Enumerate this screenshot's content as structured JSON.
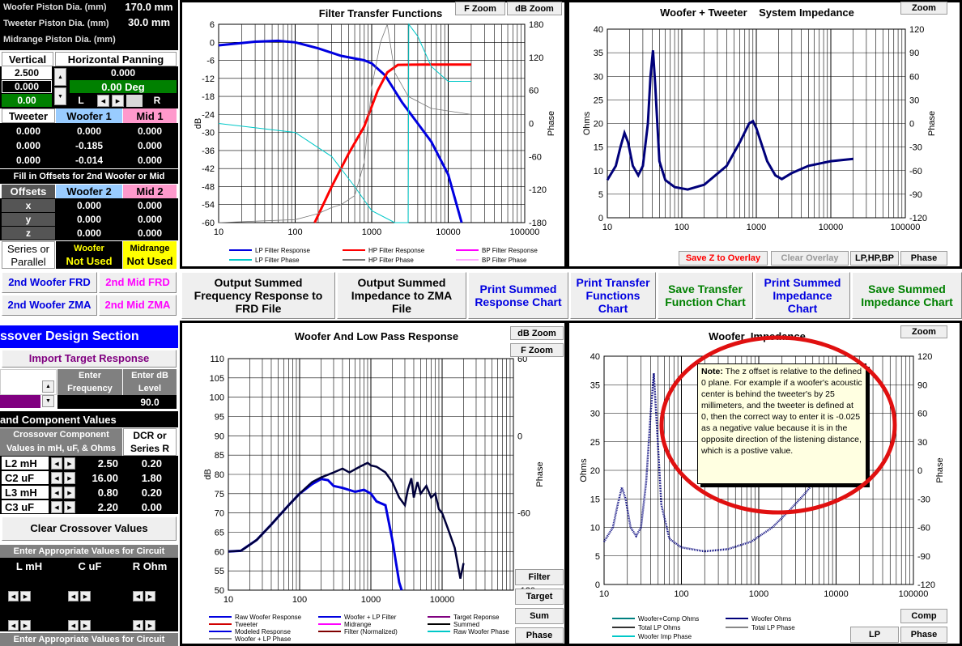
{
  "topleft": {
    "woofer_piston_label": "Woofer Piston Dia. (mm)",
    "woofer_piston_val": "170.0 mm",
    "tweeter_piston_label": "Tweeter Piston Dia. (mm)",
    "tweeter_piston_val": "30.0 mm",
    "mid_piston_label": "Midrange Piston Dia. (mm)"
  },
  "panning": {
    "vertical_label": "Vertical",
    "horizontal_label": "Horizontal Panning",
    "v1": "2.500",
    "v2": "0.000",
    "v3": "0.00",
    "h1": "0.000",
    "h2": "0.00 Deg",
    "L": "L",
    "R": "R"
  },
  "offsets_table": {
    "tweeter": "Tweeter",
    "woofer1": "Woofer 1",
    "mid1": "Mid 1",
    "rows": [
      [
        "0.000",
        "0.000",
        "0.000"
      ],
      [
        "0.000",
        "-0.185",
        "0.000"
      ],
      [
        "0.000",
        "-0.014",
        "0.000"
      ]
    ]
  },
  "offsets2": {
    "note": "Fill in Offsets for 2nd Woofer or Mid",
    "offsets": "Offsets",
    "woofer2": "Woofer 2",
    "mid2": "Mid 2",
    "rows": [
      [
        "x",
        "0.000",
        "0.000"
      ],
      [
        "y",
        "0.000",
        "0.000"
      ],
      [
        "z",
        "0.000",
        "0.000"
      ]
    ]
  },
  "series": {
    "label1": "Series or",
    "label2": "Parallel",
    "woofer": "Woofer",
    "woofer_val": "Not Used",
    "midrange": "Midrange",
    "mid_val": "Not Used"
  },
  "buttons_left": {
    "woofer_frd": "2nd Woofer FRD",
    "mid_frd": "2nd Mid FRD",
    "woofer_zma": "2nd Woofer ZMA",
    "mid_zma": "2nd Mid ZMA"
  },
  "action_buttons": [
    "Output Summed Frequency Response to FRD File",
    "Output Summed Impedance to ZMA File",
    "Print Summed Response Chart",
    "Print Transfer Functions Chart",
    "Save Transfer Function Chart",
    "Print Summed Impedance Chart",
    "Save Summed Impedance Chart"
  ],
  "crossover": {
    "header": "ssover Design Section",
    "import": "Import Target Response",
    "enter_freq": "Enter Frequency",
    "enter_db": "Enter dB Level",
    "db_val": "90.0",
    "component_values": "and Component Values",
    "comp_hdr": "Crossover Component Values in mH, uF, & Ohms",
    "dcr_hdr": "DCR or Series R",
    "components": [
      {
        "name": "L2 mH",
        "val": "2.50",
        "dcr": "0.20"
      },
      {
        "name": "C2  uF",
        "val": "16.00",
        "dcr": "1.80"
      },
      {
        "name": "L3 mH",
        "val": "0.80",
        "dcr": "0.20"
      },
      {
        "name": "C3  uF",
        "val": "2.20",
        "dcr": "0.00"
      }
    ],
    "clear": "Clear Crossover Values",
    "enter_vals": "Enter Appropriate Values for Circuit",
    "lmh": "L mH",
    "cuf": "C uF",
    "rohm": "R Ohm",
    "enter_vals2": "Enter Appropriate Values for Circuit"
  },
  "chart1": {
    "title": "Filter Transfer Functions",
    "fzoom": "F Zoom",
    "dbzoom": "dB Zoom",
    "ylabel": "dB",
    "y2label": "Phase",
    "yticks": [
      "6",
      "0",
      "-6",
      "-12",
      "-18",
      "-24",
      "-30",
      "-36",
      "-42",
      "-48",
      "-54",
      "-60"
    ],
    "y2ticks": [
      "180",
      "120",
      "60",
      "0",
      "-60",
      "-120",
      "-180"
    ],
    "xticks": [
      "10",
      "100",
      "1000",
      "10000",
      "100000"
    ],
    "legend": [
      "LP Filter Response",
      "HP Filter Response",
      "BP Filter Response",
      "LP Filter Phase",
      "HP Filter Phase",
      "BP Filter Phase"
    ]
  },
  "chart2": {
    "title": "Woofer + Tweeter    System Impedance",
    "zoom": "Zoom",
    "ylabel": "Ohms",
    "y2label": "Phase",
    "yticks": [
      "40",
      "35",
      "30",
      "25",
      "20",
      "15",
      "10",
      "5",
      "0"
    ],
    "y2ticks": [
      "120",
      "90",
      "60",
      "30",
      "0",
      "-30",
      "-60",
      "-90",
      "-120"
    ],
    "xticks": [
      "10",
      "100",
      "1000",
      "10000",
      "100000"
    ],
    "save_z": "Save Z to Overlay",
    "clear_overlay": "Clear Overlay",
    "lphpbp": "LP,HP,BP",
    "phase": "Phase"
  },
  "chart3": {
    "title": "Woofer  And Low Pass Response",
    "dbzoom": "dB Zoom",
    "fzoom": "F Zoom",
    "ylabel": "dB",
    "y2label": "Phase",
    "yticks": [
      "110",
      "105",
      "100",
      "95",
      "90",
      "85",
      "80",
      "75",
      "70",
      "65",
      "60",
      "55",
      "50"
    ],
    "y2ticks": [
      "60",
      "0",
      "-60",
      "-120"
    ],
    "xticks": [
      "10",
      "100",
      "1000",
      "10000"
    ],
    "side": [
      "Filter",
      "Target",
      "Sum",
      "Phase"
    ],
    "legend": [
      "Raw Woofer Response",
      "Woofer + LP Filter",
      "Target Reponse",
      "Tweeter",
      "Midrange",
      "Summed",
      "Modeled Response",
      "Filter (Normalized)",
      "Raw Woofer Phase",
      "Woofer + LP  Phase"
    ]
  },
  "chart4": {
    "title": "Woofer  Impedance",
    "zoom": "Zoom",
    "ylabel": "Ohms",
    "y2label": "Phase",
    "yticks": [
      "40",
      "35",
      "30",
      "25",
      "20",
      "15",
      "10",
      "5",
      "0"
    ],
    "y2ticks": [
      "120",
      "90",
      "60",
      "30",
      "0",
      "-30",
      "-60",
      "-90",
      "-120"
    ],
    "xticks": [
      "10",
      "100",
      "1000",
      "10000",
      "100000"
    ],
    "comp": "Comp",
    "lp": "LP",
    "phase": "Phase",
    "legend": [
      "Woofer+Comp Ohms",
      "Woofer Ohms",
      "Total LP Ohms",
      "Total LP Phase",
      "Woofer Imp Phase"
    ]
  },
  "tooltip": {
    "note_label": "Note:",
    "text": "The z offset is relative to the defined 0 plane. For example if a woofer's acoustic center is behind the tweeter's by 25 millimeters, and the tweeter is defined at 0,  then the correct way to enter it is -0.025 as a negative value because it is in the opposite direction of the listening distance, which is a postive value."
  },
  "colors": {
    "blue": "#0000e0",
    "red": "#ff0000",
    "cyan": "#00c8c8",
    "green": "#008000",
    "pink": "#ff99cc",
    "lightblue": "#99ccff",
    "yellow": "#ffff00",
    "navy": "#000080"
  }
}
